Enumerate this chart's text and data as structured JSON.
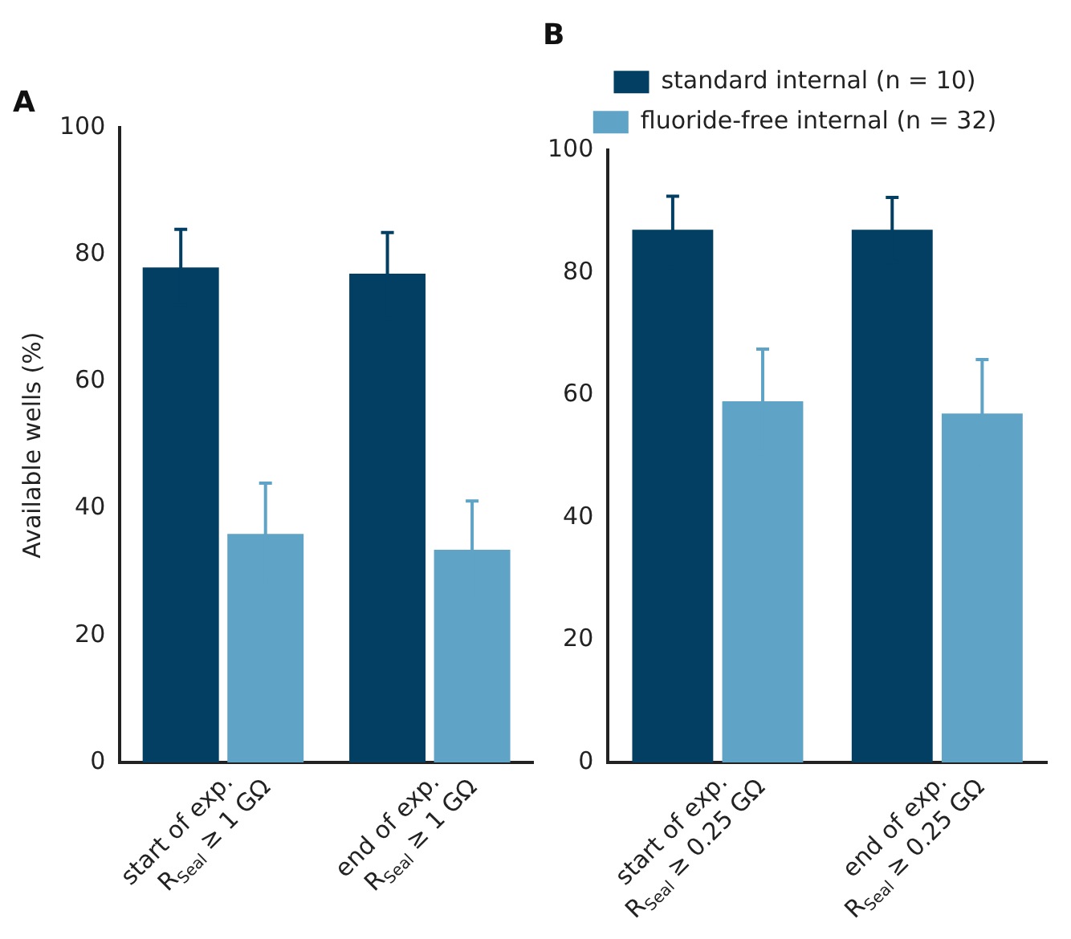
{
  "chart_data": [
    {
      "type": "bar",
      "title": "A",
      "ylabel": "Available wells (%)",
      "categories": [
        "start of exp.\nR$_{Seal}$ ≥ 1 GΩ",
        "end of exp.\nR$_{Seal}$ ≥ 1 GΩ"
      ],
      "ylim": [
        0,
        100
      ],
      "yticks": [
        0,
        20,
        40,
        60,
        80,
        100
      ],
      "grid": false,
      "series": [
        {
          "color": "#033f63",
          "values": [
            78,
            77
          ],
          "errors": [
            6,
            6.5
          ]
        },
        {
          "color": "#5fa3c6",
          "values": [
            36,
            33.5
          ],
          "errors": [
            8,
            7.7
          ]
        }
      ]
    },
    {
      "type": "bar",
      "title": "B",
      "categories": [
        "start of exp.\nR$_{Seal}$ ≥ 0.25 GΩ",
        "end of exp.\nR$_{Seal}$ ≥ 0.25 GΩ"
      ],
      "ylim": [
        0,
        100
      ],
      "yticks": [
        0,
        20,
        40,
        60,
        80,
        100
      ],
      "grid": false,
      "legend": "top",
      "series": [
        {
          "name": "standard internal (n = 10)",
          "color": "#033f63",
          "values": [
            87,
            87
          ],
          "errors": [
            5.5,
            5.3
          ]
        },
        {
          "name": "fluoride-free internal (n = 32)",
          "color": "#5fa3c6",
          "values": [
            59,
            57
          ],
          "errors": [
            8.5,
            8.8
          ]
        }
      ]
    }
  ]
}
